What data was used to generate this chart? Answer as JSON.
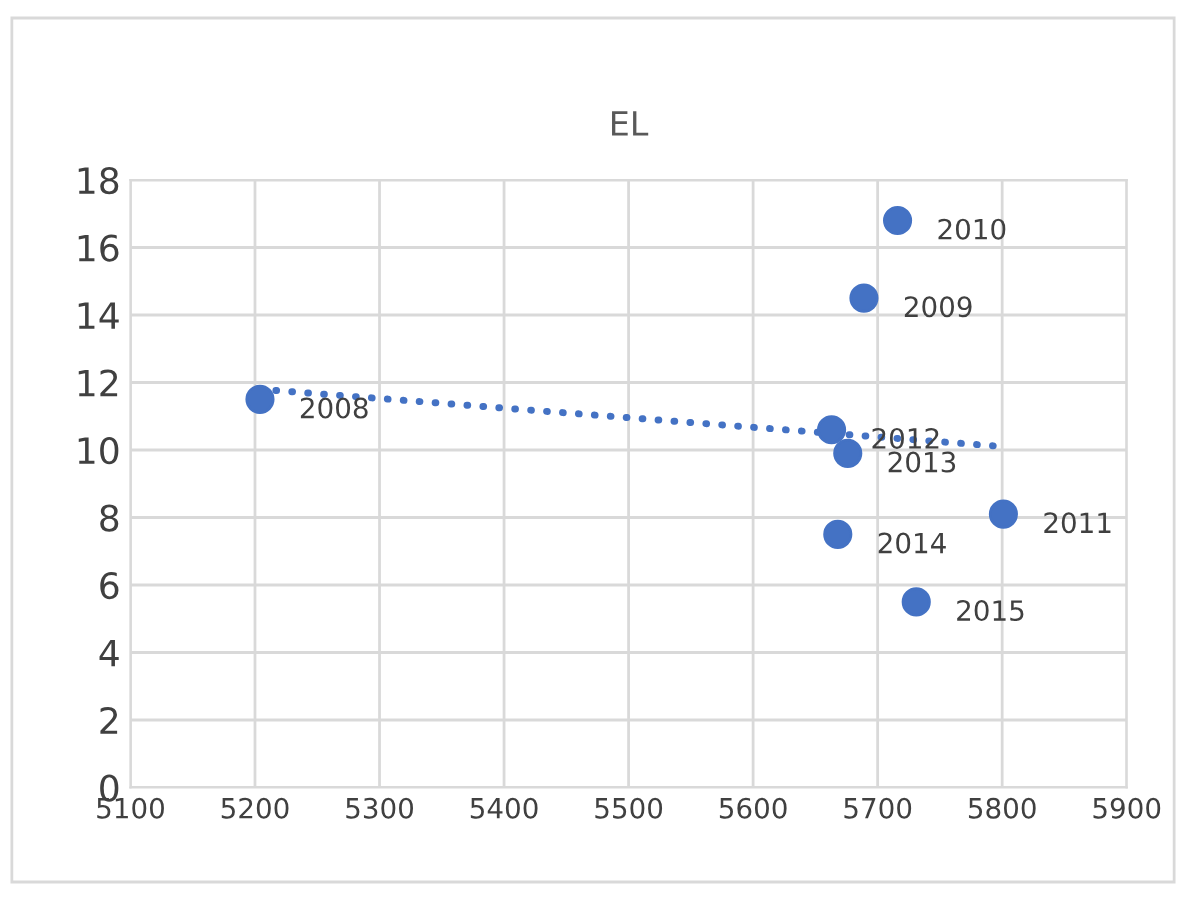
{
  "chart_data": {
    "type": "scatter",
    "title": "EL",
    "series": [
      {
        "color": "#4472c4",
        "marker": "circle",
        "x": [
          5204,
          5689,
          5716,
          5801,
          5663,
          5676,
          5668,
          5731
        ],
        "values": [
          11.5,
          14.5,
          16.8,
          8.1,
          10.6,
          9.9,
          7.5,
          5.5
        ]
      },
      {
        "type": "line",
        "color": "#4472c4",
        "line_style": "dotted",
        "marker": "none",
        "x": [
          5204,
          5801
        ],
        "values": [
          11.8,
          10.1
        ]
      }
    ],
    "annotations": [
      {
        "text": "2008",
        "x": 5204,
        "y": 11.5
      },
      {
        "text": "2009",
        "x": 5689,
        "y": 14.5
      },
      {
        "text": "2010",
        "x": 5716,
        "y": 16.8
      },
      {
        "text": "2011",
        "x": 5801,
        "y": 8.1
      },
      {
        "text": "2012",
        "x": 5663,
        "y": 10.6
      },
      {
        "text": "2013",
        "x": 5676,
        "y": 9.9
      },
      {
        "text": "2014",
        "x": 5668,
        "y": 7.5
      },
      {
        "text": "2015",
        "x": 5731,
        "y": 5.5
      }
    ],
    "xlim": [
      5100,
      5900
    ],
    "xticks": [
      5100,
      5200,
      5300,
      5400,
      5500,
      5600,
      5700,
      5800,
      5900
    ],
    "ylim": [
      0,
      18
    ],
    "yticks": [
      0,
      2,
      4,
      6,
      8,
      10,
      12,
      14,
      16,
      18
    ],
    "grid": true,
    "legend": false
  }
}
